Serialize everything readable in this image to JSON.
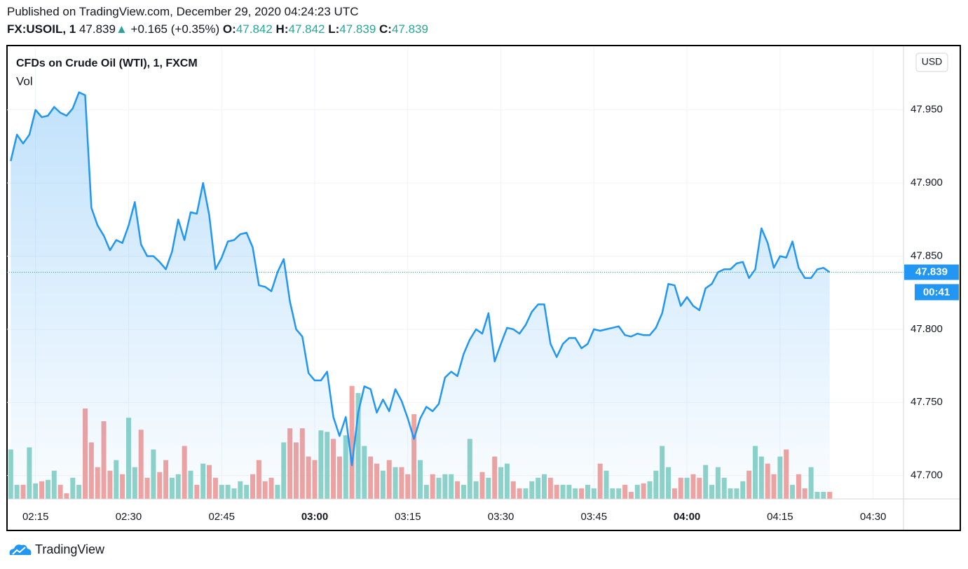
{
  "header": {
    "published": "Published on TradingView.com, December 29, 2020 04:24:23 UTC",
    "symbol": "FX:USOIL, 1",
    "last": "47.839",
    "arrow": "▲",
    "change": "+0.165 (+0.35%)",
    "o_label": "O:",
    "o": "47.842",
    "h_label": "H:",
    "h": "47.842",
    "l_label": "L:",
    "l": "47.839",
    "c_label": "C:",
    "c": "47.839"
  },
  "footer": {
    "brand": "TradingView"
  },
  "chart_data": {
    "type": "line",
    "title": "CFDs on Crude Oil (WTI), 1, FXCM",
    "volume_label": "Vol",
    "currency": "USD",
    "countdown": "00:41",
    "color": "#2196f3",
    "x": [
      131,
      132,
      133,
      134,
      135,
      136,
      137,
      138,
      139,
      140,
      141,
      142,
      143,
      144,
      145,
      146,
      147,
      148,
      149,
      150,
      151,
      152,
      153,
      154,
      155,
      156,
      157,
      158,
      159,
      160,
      161,
      162,
      163,
      164,
      165,
      166,
      167,
      168,
      169,
      170,
      171,
      172,
      173,
      174,
      175,
      176,
      177,
      178,
      179,
      180,
      181,
      182,
      183,
      184,
      185,
      186,
      187,
      188,
      189,
      190,
      191,
      192,
      193,
      194,
      195,
      196,
      197,
      198,
      199,
      200,
      201,
      202,
      203,
      204,
      205,
      206,
      207,
      208,
      209,
      210,
      211,
      212,
      213,
      214,
      215,
      216,
      217,
      218,
      219,
      220,
      221,
      222,
      223,
      224,
      225,
      226,
      227,
      228,
      229,
      230,
      231,
      232,
      233,
      234,
      235,
      236,
      237,
      238,
      239,
      240,
      241,
      242,
      243,
      244,
      245,
      246,
      247,
      248,
      249,
      250,
      251,
      252,
      253,
      254,
      255,
      256,
      257,
      258,
      259,
      260,
      261,
      262,
      263
    ],
    "values": [
      47.915,
      47.933,
      47.927,
      47.933,
      47.95,
      47.945,
      47.946,
      47.952,
      47.948,
      47.946,
      47.951,
      47.962,
      47.96,
      47.883,
      47.871,
      47.864,
      47.854,
      47.861,
      47.859,
      47.871,
      47.887,
      47.858,
      47.85,
      47.85,
      47.846,
      47.841,
      47.853,
      47.875,
      47.861,
      47.88,
      47.879,
      47.9,
      47.878,
      47.841,
      47.849,
      47.86,
      47.861,
      47.865,
      47.866,
      47.856,
      47.83,
      47.829,
      47.826,
      47.839,
      47.848,
      47.819,
      47.8,
      47.795,
      47.77,
      47.765,
      47.765,
      47.771,
      47.74,
      47.727,
      47.74,
      47.707,
      47.743,
      47.761,
      47.759,
      47.743,
      47.752,
      47.744,
      47.759,
      47.751,
      47.739,
      47.725,
      47.739,
      47.747,
      47.744,
      47.749,
      47.767,
      47.771,
      47.768,
      47.783,
      47.793,
      47.8,
      47.797,
      47.811,
      47.778,
      47.79,
      47.801,
      47.8,
      47.797,
      47.803,
      47.812,
      47.817,
      47.817,
      47.79,
      47.781,
      47.79,
      47.794,
      47.794,
      47.787,
      47.79,
      47.8,
      47.799,
      47.8,
      47.801,
      47.802,
      47.796,
      47.795,
      47.797,
      47.796,
      47.796,
      47.801,
      47.811,
      47.831,
      47.83,
      47.816,
      47.822,
      47.816,
      47.813,
      47.828,
      47.831,
      47.839,
      47.841,
      47.841,
      47.845,
      47.846,
      47.835,
      47.841,
      47.869,
      47.859,
      47.842,
      47.85,
      47.849,
      47.86,
      47.842,
      47.835,
      47.835,
      47.841,
      47.842,
      47.839
    ],
    "volume": {
      "up_color": "#8fd3c8",
      "down_color": "#f2a3a0",
      "values": [
        70,
        20,
        20,
        73,
        22,
        25,
        27,
        40,
        20,
        8,
        30,
        20,
        128,
        80,
        45,
        110,
        40,
        55,
        35,
        115,
        45,
        98,
        30,
        70,
        38,
        55,
        30,
        35,
        75,
        40,
        20,
        50,
        48,
        30,
        20,
        20,
        15,
        25,
        20,
        35,
        55,
        25,
        30,
        20,
        80,
        100,
        80,
        100,
        60,
        55,
        97,
        95,
        85,
        60,
        90,
        160,
        150,
        75,
        60,
        50,
        40,
        55,
        45,
        45,
        35,
        120,
        55,
        20,
        35,
        30,
        35,
        35,
        25,
        20,
        85,
        25,
        38,
        30,
        60,
        45,
        50,
        25,
        15,
        15,
        25,
        30,
        35,
        30,
        20,
        20,
        20,
        15,
        15,
        20,
        15,
        50,
        40,
        15,
        15,
        20,
        10,
        20,
        22,
        25,
        40,
        75,
        45,
        15,
        30,
        30,
        35,
        30,
        48,
        20,
        45,
        30,
        15,
        15,
        25,
        40,
        75,
        60,
        50,
        35,
        60,
        70,
        20,
        35,
        15,
        45,
        10,
        10,
        10
      ]
    },
    "xlim": [
      130.4,
      274.9
    ],
    "ylim": [
      47.684,
      47.993
    ],
    "xticks": [
      {
        "value": 135,
        "label": "02:15"
      },
      {
        "value": 150,
        "label": "02:30"
      },
      {
        "value": 165,
        "label": "02:45"
      },
      {
        "value": 180,
        "label": "03:00",
        "bold": true
      },
      {
        "value": 195,
        "label": "03:15"
      },
      {
        "value": 210,
        "label": "03:30"
      },
      {
        "value": 225,
        "label": "03:45"
      },
      {
        "value": 240,
        "label": "04:00",
        "bold": true
      },
      {
        "value": 255,
        "label": "04:15"
      },
      {
        "value": 270,
        "label": "04:30"
      }
    ],
    "yticks": [
      {
        "value": 47.7,
        "label": "47.700"
      },
      {
        "value": 47.75,
        "label": "47.750"
      },
      {
        "value": 47.8,
        "label": "47.800"
      },
      {
        "value": 47.85,
        "label": "47.850"
      },
      {
        "value": 47.9,
        "label": "47.900"
      },
      {
        "value": 47.95,
        "label": "47.950"
      }
    ],
    "grid": true
  }
}
